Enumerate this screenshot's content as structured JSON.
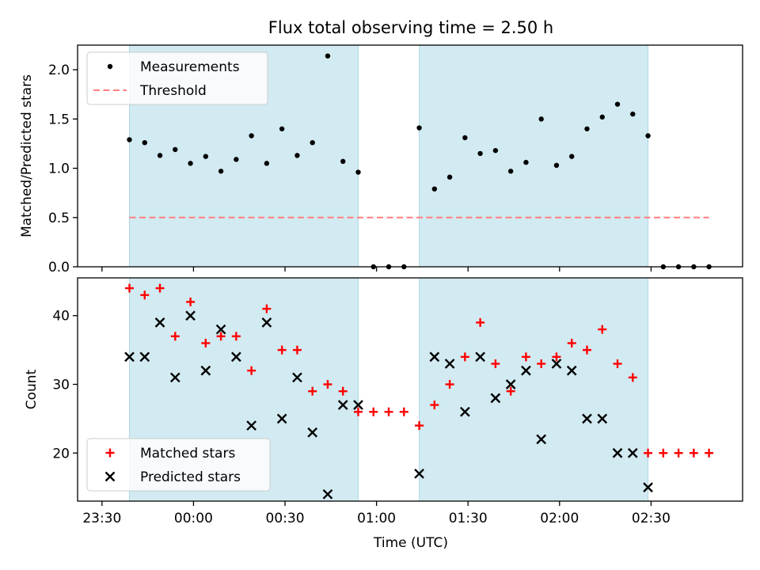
{
  "chart_data": [
    {
      "type": "scatter",
      "title": "Flux total observing time = 2.50 h",
      "ylabel": "Matched/Predicted stars",
      "xlabel": "",
      "xlim": [
        "23:22",
        "03:00"
      ],
      "ylim": [
        0,
        2.25
      ],
      "yticks": [
        0.0,
        0.5,
        1.0,
        1.5,
        2.0
      ],
      "ytick_labels": [
        "0.0",
        "0.5",
        "1.0",
        "1.5",
        "2.0"
      ],
      "shaded_intervals": [
        [
          "23:39",
          "00:54"
        ],
        [
          "01:14",
          "02:29"
        ]
      ],
      "shade_color": "#add8e6",
      "legend_position": "upper left",
      "series": [
        {
          "name": "Measurements",
          "marker": "dot",
          "color": "#000000",
          "x": [
            "23:39",
            "23:44",
            "23:49",
            "23:54",
            "23:59",
            "00:04",
            "00:09",
            "00:14",
            "00:19",
            "00:24",
            "00:29",
            "00:34",
            "00:39",
            "00:44",
            "00:49",
            "00:54",
            "00:59",
            "01:04",
            "01:09",
            "01:14",
            "01:19",
            "01:24",
            "01:29",
            "01:34",
            "01:39",
            "01:44",
            "01:49",
            "01:54",
            "01:59",
            "02:04",
            "02:09",
            "02:14",
            "02:19",
            "02:24",
            "02:29",
            "02:34",
            "02:39",
            "02:44",
            "02:49"
          ],
          "y": [
            1.29,
            1.26,
            1.13,
            1.19,
            1.05,
            1.12,
            0.97,
            1.09,
            1.33,
            1.05,
            1.4,
            1.13,
            1.26,
            2.14,
            1.07,
            0.96,
            0,
            0,
            0,
            1.41,
            0.79,
            0.91,
            1.31,
            1.15,
            1.18,
            0.97,
            1.06,
            1.5,
            1.03,
            1.12,
            1.4,
            1.52,
            1.65,
            1.55,
            1.33,
            0,
            0,
            0,
            0
          ]
        },
        {
          "name": "Threshold",
          "style": "dashed",
          "color": "#ff7f7f",
          "x": [
            "23:39",
            "02:49"
          ],
          "y": [
            0.5,
            0.5
          ]
        }
      ]
    },
    {
      "type": "scatter",
      "title": "",
      "ylabel": "Count",
      "xlabel": "Time (UTC)",
      "xlim": [
        "23:22",
        "03:00"
      ],
      "ylim": [
        13,
        45.5
      ],
      "yticks": [
        20,
        30,
        40
      ],
      "ytick_labels": [
        "20",
        "30",
        "40"
      ],
      "xticks": [
        "23:30",
        "00:00",
        "00:30",
        "01:00",
        "01:30",
        "02:00",
        "02:30"
      ],
      "xtick_labels": [
        "23:30",
        "00:00",
        "00:30",
        "01:00",
        "01:30",
        "02:00",
        "02:30"
      ],
      "shaded_intervals": [
        [
          "23:39",
          "00:54"
        ],
        [
          "01:14",
          "02:29"
        ]
      ],
      "shade_color": "#add8e6",
      "legend_position": "lower left",
      "series": [
        {
          "name": "Matched stars",
          "marker": "plus",
          "color": "#ff0000",
          "x": [
            "23:39",
            "23:44",
            "23:49",
            "23:54",
            "23:59",
            "00:04",
            "00:09",
            "00:14",
            "00:19",
            "00:24",
            "00:29",
            "00:34",
            "00:39",
            "00:44",
            "00:49",
            "00:54",
            "00:59",
            "01:04",
            "01:09",
            "01:14",
            "01:19",
            "01:24",
            "01:29",
            "01:34",
            "01:39",
            "01:44",
            "01:49",
            "01:54",
            "01:59",
            "02:04",
            "02:09",
            "02:14",
            "02:19",
            "02:24",
            "02:29",
            "02:34",
            "02:39",
            "02:44",
            "02:49"
          ],
          "y": [
            44,
            43,
            44,
            37,
            42,
            36,
            37,
            37,
            32,
            41,
            35,
            35,
            29,
            30,
            29,
            26,
            26,
            26,
            26,
            24,
            27,
            30,
            34,
            39,
            33,
            29,
            34,
            33,
            34,
            36,
            35,
            38,
            33,
            31,
            20,
            20,
            20,
            20,
            20
          ]
        },
        {
          "name": "Predicted stars",
          "marker": "x",
          "color": "#000000",
          "x": [
            "23:39",
            "23:44",
            "23:49",
            "23:54",
            "23:59",
            "00:04",
            "00:09",
            "00:14",
            "00:19",
            "00:24",
            "00:29",
            "00:34",
            "00:39",
            "00:44",
            "00:49",
            "00:54",
            "01:14",
            "01:19",
            "01:24",
            "01:29",
            "01:34",
            "01:39",
            "01:44",
            "01:49",
            "01:54",
            "01:59",
            "02:04",
            "02:09",
            "02:14",
            "02:19",
            "02:24",
            "02:29"
          ],
          "y": [
            34,
            34,
            39,
            31,
            40,
            32,
            38,
            34,
            24,
            39,
            25,
            31,
            23,
            14,
            27,
            27,
            17,
            34,
            33,
            26,
            34,
            28,
            30,
            32,
            22,
            33,
            32,
            25,
            25,
            20,
            20,
            15
          ]
        }
      ]
    }
  ]
}
